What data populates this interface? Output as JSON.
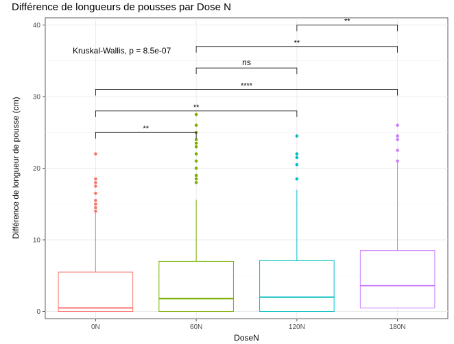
{
  "chart_data": {
    "type": "box",
    "title": "Différence de longueurs de pousses par Dose N",
    "xlabel": "DoseN",
    "ylabel": "Différence de longueur de pousse (cm)",
    "ylim": [
      -1,
      41
    ],
    "yticks": [
      0,
      10,
      20,
      30,
      40
    ],
    "grid": true,
    "legend": "none",
    "categories": [
      "0N",
      "60N",
      "120N",
      "180N"
    ],
    "boxes": [
      {
        "category": "0N",
        "color": "#F8766D",
        "q1": 0.0,
        "median": 0.5,
        "q3": 5.5,
        "whisker_low": 0.0,
        "whisker_high": 13.8,
        "outliers": [
          14.0,
          14.5,
          15.0,
          15.5,
          16.5,
          17.5,
          18.0,
          18.5,
          22.0
        ]
      },
      {
        "category": "60N",
        "color": "#7CAE00",
        "q1": 0.0,
        "median": 1.8,
        "q3": 7.0,
        "whisker_low": 0.0,
        "whisker_high": 15.6,
        "outliers": [
          18.0,
          18.5,
          19.0,
          20.0,
          21.0,
          22.0,
          23.0,
          23.5,
          24.0,
          25.0,
          26.0,
          27.5
        ]
      },
      {
        "category": "120N",
        "color": "#00BFC4",
        "q1": 0.0,
        "median": 2.0,
        "q3": 7.1,
        "whisker_low": 0.0,
        "whisker_high": 17.0,
        "outliers": [
          18.5,
          20.5,
          21.5,
          22.0,
          24.5
        ]
      },
      {
        "category": "180N",
        "color": "#C77CFF",
        "q1": 0.5,
        "median": 3.6,
        "q3": 8.5,
        "whisker_low": 0.5,
        "whisker_high": 20.8,
        "outliers": [
          21.0,
          22.5,
          24.0,
          24.5,
          26.0
        ]
      }
    ],
    "annotations": [
      {
        "text": "Kruskal-Wallis, p = 8.5e-07"
      }
    ],
    "comparisons": [
      {
        "from": "0N",
        "to": "60N",
        "y": 25,
        "label": "**"
      },
      {
        "from": "0N",
        "to": "120N",
        "y": 28,
        "label": "**"
      },
      {
        "from": "0N",
        "to": "180N",
        "y": 31,
        "label": "****"
      },
      {
        "from": "60N",
        "to": "120N",
        "y": 34,
        "label": "ns"
      },
      {
        "from": "60N",
        "to": "180N",
        "y": 37,
        "label": "**"
      },
      {
        "from": "120N",
        "to": "180N",
        "y": 40,
        "label": "**"
      }
    ]
  }
}
